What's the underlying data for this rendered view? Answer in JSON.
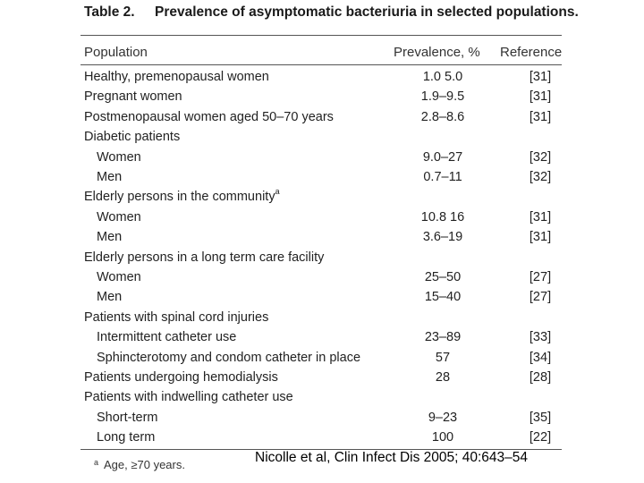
{
  "table": {
    "number": "Table 2.",
    "title": "Prevalence of asymptomatic bacteriuria in selected populations.",
    "headers": {
      "population": "Population",
      "prevalence": "Prevalence, %",
      "reference": "Reference"
    },
    "rows": [
      {
        "population": "Healthy, premenopausal women",
        "prevalence": "1.0 5.0",
        "reference": "[31]"
      },
      {
        "population": "Pregnant women",
        "prevalence": "1.9–9.5",
        "reference": "[31]"
      },
      {
        "population": "Postmenopausal women aged 50–70 years",
        "prevalence": "2.8–8.6",
        "reference": "[31]"
      },
      {
        "population": "Diabetic patients",
        "prevalence": "",
        "reference": ""
      },
      {
        "population": "Women",
        "prevalence": "9.0–27",
        "reference": "[32]"
      },
      {
        "population": "Men",
        "prevalence": "0.7–11",
        "reference": "[32]"
      },
      {
        "population": "Elderly persons in the community",
        "sup": "a",
        "prevalence": "",
        "reference": ""
      },
      {
        "population": "Women",
        "prevalence": "10.8 16",
        "reference": "[31]"
      },
      {
        "population": "Men",
        "prevalence": "3.6–19",
        "reference": "[31]"
      },
      {
        "population": "Elderly persons in a long term care facility",
        "prevalence": "",
        "reference": ""
      },
      {
        "population": "Women",
        "prevalence": "25–50",
        "reference": "[27]"
      },
      {
        "population": "Men",
        "prevalence": "15–40",
        "reference": "[27]"
      },
      {
        "population": "Patients with spinal cord injuries",
        "prevalence": "",
        "reference": ""
      },
      {
        "population": "Intermittent catheter use",
        "prevalence": "23–89",
        "reference": "[33]"
      },
      {
        "population": "Sphincterotomy and condom catheter in place",
        "prevalence": "57",
        "reference": "[34]"
      },
      {
        "population": "Patients undergoing hemodialysis",
        "prevalence": "28",
        "reference": "[28]"
      },
      {
        "population": "Patients with indwelling catheter use",
        "prevalence": "",
        "reference": ""
      },
      {
        "population": "Short-term",
        "prevalence": "9–23",
        "reference": "[35]"
      },
      {
        "population": "Long term",
        "prevalence": "100",
        "reference": "[22]"
      }
    ],
    "footnote": {
      "marker": "a",
      "text": "Age, ≥70 years."
    }
  },
  "citation": "Nicolle et al, Clin Infect Dis 2005; 40:643–54"
}
